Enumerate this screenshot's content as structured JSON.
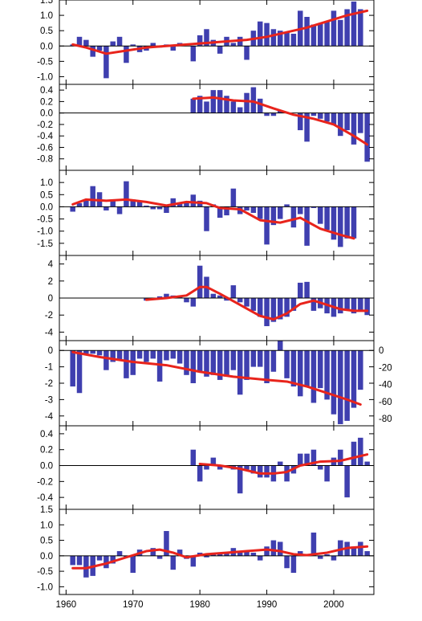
{
  "colors": {
    "bar": "#3f3faf",
    "smooth": "#e8241c",
    "axis": "#000000"
  },
  "chart_data": [
    {
      "type": "bar",
      "panel": 1,
      "x": [
        1961,
        1962,
        1963,
        1964,
        1965,
        1966,
        1967,
        1968,
        1969,
        1970,
        1971,
        1972,
        1973,
        1974,
        1975,
        1976,
        1977,
        1978,
        1979,
        1980,
        1981,
        1982,
        1983,
        1984,
        1985,
        1986,
        1987,
        1988,
        1989,
        1990,
        1991,
        1992,
        1993,
        1994,
        1995,
        1996,
        1997,
        1998,
        1999,
        2000,
        2001,
        2002,
        2003,
        2004,
        2005
      ],
      "values": [
        0.05,
        0.3,
        0.2,
        -0.35,
        -0.15,
        -1.05,
        0.15,
        0.3,
        -0.55,
        0.05,
        -0.2,
        -0.15,
        0.1,
        -0.05,
        0.05,
        -0.15,
        0.1,
        0.0,
        -0.5,
        0.35,
        0.55,
        0.2,
        -0.25,
        0.3,
        0.1,
        0.3,
        -0.45,
        0.5,
        0.8,
        0.75,
        0.55,
        0.5,
        0.45,
        0.4,
        1.15,
        0.95,
        0.7,
        0.75,
        0.8,
        1.15,
        0.85,
        1.2,
        1.45,
        1.2,
        0.0
      ],
      "smooth_x": [
        1961,
        1963,
        1966,
        1969,
        1972,
        1975,
        1978,
        1981,
        1984,
        1987,
        1990,
        1993,
        1996,
        1999,
        2002,
        2005
      ],
      "smooth_y": [
        0.05,
        -0.05,
        -0.25,
        -0.15,
        -0.05,
        0.0,
        0.05,
        0.1,
        0.15,
        0.2,
        0.3,
        0.45,
        0.6,
        0.8,
        1.0,
        1.15
      ],
      "ylim": [
        -1.25,
        1.5
      ],
      "yticks": [
        1.5,
        1.0,
        0.5,
        0.0,
        -0.5,
        -1.0
      ],
      "ytick_labels": [
        "1.5",
        "1.0",
        "0.5",
        "0.0",
        "-0.5",
        "-1.0"
      ]
    },
    {
      "type": "bar",
      "panel": 2,
      "x": [
        1979,
        1980,
        1981,
        1982,
        1983,
        1984,
        1985,
        1986,
        1987,
        1988,
        1989,
        1990,
        1991,
        1992,
        1993,
        1994,
        1995,
        1996,
        1997,
        1998,
        1999,
        2000,
        2001,
        2002,
        2003,
        2004,
        2005
      ],
      "values": [
        0.25,
        0.3,
        0.2,
        0.4,
        0.4,
        0.3,
        0.2,
        0.1,
        0.35,
        0.45,
        0.25,
        -0.05,
        -0.05,
        0.05,
        0.0,
        0.0,
        -0.3,
        -0.5,
        -0.05,
        -0.1,
        -0.15,
        -0.2,
        -0.4,
        -0.3,
        -0.55,
        -0.35,
        -0.85
      ],
      "smooth_x": [
        1979,
        1982,
        1985,
        1988,
        1991,
        1994,
        1997,
        2000,
        2003,
        2005
      ],
      "smooth_y": [
        0.25,
        0.27,
        0.22,
        0.2,
        0.08,
        -0.03,
        -0.1,
        -0.2,
        -0.4,
        -0.55
      ],
      "ylim": [
        -1.0,
        0.5
      ],
      "yticks": [
        0.4,
        0.2,
        0.0,
        -0.2,
        -0.4,
        -0.6,
        -0.8
      ],
      "ytick_labels": [
        "0.4",
        "0.2",
        "0.0",
        "-0.2",
        "-0.4",
        "-0.6",
        "-0.8"
      ]
    },
    {
      "type": "bar",
      "panel": 3,
      "x": [
        1961,
        1962,
        1963,
        1964,
        1965,
        1966,
        1967,
        1968,
        1969,
        1970,
        1971,
        1972,
        1973,
        1974,
        1975,
        1976,
        1977,
        1978,
        1979,
        1980,
        1981,
        1982,
        1983,
        1984,
        1985,
        1986,
        1987,
        1988,
        1989,
        1990,
        1991,
        1992,
        1993,
        1994,
        1995,
        1996,
        1997,
        1998,
        1999,
        2000,
        2001,
        2002,
        2003
      ],
      "values": [
        -0.2,
        0.15,
        0.3,
        0.85,
        0.6,
        -0.15,
        0.3,
        -0.3,
        1.05,
        0.3,
        0.2,
        0.05,
        -0.1,
        -0.1,
        -0.25,
        0.35,
        0.15,
        0.2,
        0.5,
        0.25,
        -1.0,
        0.1,
        -0.45,
        -0.35,
        0.75,
        -0.3,
        -0.15,
        -0.25,
        -0.5,
        -1.55,
        -0.75,
        -0.5,
        0.1,
        -0.85,
        -0.3,
        -1.6,
        -0.05,
        -0.7,
        -0.95,
        -1.35,
        -1.65,
        -1.3,
        -1.3
      ],
      "smooth_x": [
        1961,
        1963,
        1966,
        1969,
        1972,
        1975,
        1978,
        1981,
        1983,
        1986,
        1989,
        1992,
        1995,
        1998,
        2001,
        2003
      ],
      "smooth_y": [
        0.1,
        0.3,
        0.25,
        0.3,
        0.2,
        0.05,
        0.2,
        0.15,
        -0.05,
        -0.1,
        -0.55,
        -0.65,
        -0.45,
        -0.9,
        -1.15,
        -1.3
      ],
      "ylim": [
        -2.0,
        1.5
      ],
      "yticks": [
        1.0,
        0.5,
        0.0,
        -0.5,
        -1.0,
        -1.5
      ],
      "ytick_labels": [
        "1.0",
        "0.5",
        "0.0",
        "-0.5",
        "-1.0",
        "-1.5"
      ]
    },
    {
      "type": "bar",
      "panel": 4,
      "x": [
        1972,
        1973,
        1974,
        1975,
        1976,
        1977,
        1978,
        1979,
        1980,
        1981,
        1982,
        1983,
        1984,
        1985,
        1986,
        1987,
        1988,
        1989,
        1990,
        1991,
        1992,
        1993,
        1994,
        1995,
        1996,
        1997,
        1998,
        1999,
        2000,
        2001,
        2002,
        2003,
        2004,
        2005
      ],
      "values": [
        -0.3,
        -0.2,
        0.2,
        0.5,
        0.3,
        0.2,
        -0.5,
        -1.0,
        3.8,
        2.5,
        0.5,
        0.3,
        -0.3,
        1.5,
        -0.5,
        -1.0,
        -1.5,
        -2.2,
        -3.3,
        -2.8,
        -2.5,
        -2.2,
        -1.5,
        1.8,
        1.9,
        -1.5,
        -1.2,
        -1.8,
        -2.2,
        -1.8,
        -1.5,
        -1.8,
        -1.5,
        -2.0
      ],
      "smooth_x": [
        1972,
        1975,
        1978,
        1980,
        1981,
        1983,
        1986,
        1989,
        1991,
        1993,
        1995,
        1997,
        1999,
        2001,
        2003,
        2005
      ],
      "smooth_y": [
        -0.2,
        0.0,
        0.3,
        1.3,
        1.3,
        0.5,
        -0.8,
        -2.1,
        -2.5,
        -1.8,
        -0.7,
        -0.3,
        -0.8,
        -1.3,
        -1.5,
        -1.5
      ],
      "ylim": [
        -5.0,
        5.0
      ],
      "yticks": [
        4,
        2,
        0,
        -2,
        -4
      ],
      "ytick_labels": [
        "4",
        "2",
        "0",
        "-2",
        "-4"
      ]
    },
    {
      "type": "bar",
      "panel": 5,
      "x": [
        1961,
        1962,
        1963,
        1964,
        1965,
        1966,
        1967,
        1968,
        1969,
        1970,
        1971,
        1972,
        1973,
        1974,
        1975,
        1976,
        1977,
        1978,
        1979,
        1980,
        1981,
        1982,
        1983,
        1984,
        1985,
        1986,
        1987,
        1988,
        1989,
        1990,
        1991,
        1992,
        1993,
        1994,
        1995,
        1996,
        1997,
        1998,
        1999,
        2000,
        2001,
        2002,
        2003,
        2004
      ],
      "values": [
        -2.2,
        -2.6,
        -0.2,
        -0.2,
        -0.3,
        -1.2,
        -0.7,
        -0.6,
        -1.7,
        -1.5,
        -0.5,
        -0.7,
        -0.5,
        -1.9,
        -0.6,
        -0.5,
        -0.8,
        -1.5,
        -2.0,
        -1.3,
        -1.6,
        -1.5,
        -1.8,
        -1.6,
        -1.2,
        -2.7,
        -1.8,
        -1.0,
        -1.0,
        -2.0,
        -1.3,
        0.6,
        -1.7,
        -2.2,
        -2.8,
        -2.2,
        -3.2,
        -2.3,
        -3.0,
        -3.9,
        -4.5,
        -4.3,
        -3.5,
        -2.4
      ],
      "smooth_x": [
        1961,
        1965,
        1970,
        1975,
        1980,
        1985,
        1990,
        1993,
        1996,
        1999,
        2002,
        2004
      ],
      "smooth_y": [
        -0.1,
        -0.4,
        -0.7,
        -0.9,
        -1.3,
        -1.6,
        -1.8,
        -1.9,
        -2.2,
        -2.6,
        -3.0,
        -3.3
      ],
      "ylim": [
        -4.6,
        0.6
      ],
      "yticks": [
        0,
        -1,
        -2,
        -3,
        -4
      ],
      "ytick_labels": [
        "0",
        "-1",
        "-2",
        "-3",
        "-4"
      ],
      "y2_ticks": [
        0,
        -20,
        -40,
        -60,
        -80
      ],
      "y2_tick_labels": [
        "0",
        "-20",
        "-40",
        "-60",
        "-80"
      ],
      "y2_scale": 19.23
    },
    {
      "type": "bar",
      "panel": 6,
      "x": [
        1979,
        1980,
        1981,
        1982,
        1983,
        1984,
        1985,
        1986,
        1987,
        1988,
        1989,
        1990,
        1991,
        1992,
        1993,
        1994,
        1995,
        1996,
        1997,
        1998,
        1999,
        2000,
        2001,
        2002,
        2003,
        2004,
        2005
      ],
      "values": [
        0.2,
        -0.2,
        -0.05,
        0.1,
        -0.05,
        0.0,
        -0.05,
        -0.35,
        -0.05,
        -0.1,
        -0.15,
        -0.15,
        -0.2,
        0.05,
        -0.2,
        -0.1,
        0.15,
        0.15,
        0.2,
        -0.05,
        -0.2,
        0.1,
        0.2,
        -0.4,
        0.3,
        0.35,
        0.05
      ],
      "smooth_x": [
        1980,
        1983,
        1986,
        1989,
        1991,
        1993,
        1995,
        1998,
        2001,
        2003,
        2005
      ],
      "smooth_y": [
        0.02,
        0.0,
        -0.04,
        -0.1,
        -0.1,
        -0.08,
        0.0,
        0.05,
        0.06,
        0.1,
        0.14
      ],
      "ylim": [
        -0.55,
        0.5
      ],
      "yticks": [
        0.4,
        0.2,
        0.0,
        -0.2,
        -0.4
      ],
      "ytick_labels": [
        "0.4",
        "0.2",
        "0.0",
        "-0.2",
        "-0.4"
      ]
    },
    {
      "type": "bar",
      "panel": 7,
      "x": [
        1961,
        1962,
        1963,
        1964,
        1965,
        1966,
        1967,
        1968,
        1969,
        1970,
        1971,
        1972,
        1973,
        1974,
        1975,
        1976,
        1977,
        1978,
        1979,
        1980,
        1981,
        1982,
        1983,
        1984,
        1985,
        1986,
        1987,
        1988,
        1989,
        1990,
        1991,
        1992,
        1993,
        1994,
        1995,
        1996,
        1997,
        1998,
        1999,
        2000,
        2001,
        2002,
        2003,
        2004,
        2005
      ],
      "values": [
        -0.3,
        -0.3,
        -0.7,
        -0.65,
        -0.15,
        -0.4,
        -0.25,
        0.15,
        -0.05,
        -0.55,
        0.2,
        0.0,
        0.25,
        -0.1,
        0.8,
        -0.45,
        0.2,
        -0.1,
        -0.35,
        0.1,
        -0.05,
        0.1,
        0.1,
        0.1,
        0.25,
        0.15,
        0.15,
        0.1,
        -0.15,
        0.3,
        0.5,
        0.45,
        -0.4,
        -0.55,
        0.15,
        0.0,
        0.75,
        -0.1,
        0.05,
        -0.15,
        0.5,
        0.45,
        0.3,
        0.45,
        0.15
      ],
      "smooth_x": [
        1961,
        1963,
        1966,
        1969,
        1972,
        1974,
        1976,
        1978,
        1981,
        1984,
        1987,
        1990,
        1992,
        1994,
        1996,
        1999,
        2002,
        2005
      ],
      "smooth_y": [
        -0.4,
        -0.4,
        -0.25,
        -0.05,
        0.15,
        0.2,
        0.1,
        -0.05,
        0.05,
        0.1,
        0.15,
        0.2,
        0.15,
        0.05,
        0.02,
        0.1,
        0.25,
        0.3
      ],
      "ylim": [
        -1.25,
        1.5
      ],
      "yticks": [
        1.5,
        1.0,
        0.5,
        0.0,
        -0.5,
        -1.0
      ],
      "ytick_labels": [
        "1.5",
        "1.0",
        "0.5",
        "0.0",
        "-0.5",
        "-1.0"
      ]
    }
  ],
  "x_axis": {
    "range": [
      1959,
      2006
    ],
    "ticks": [
      1960,
      1970,
      1980,
      1990,
      2000
    ],
    "tick_labels": [
      "1960",
      "1970",
      "1980",
      "1990",
      "2000"
    ]
  }
}
